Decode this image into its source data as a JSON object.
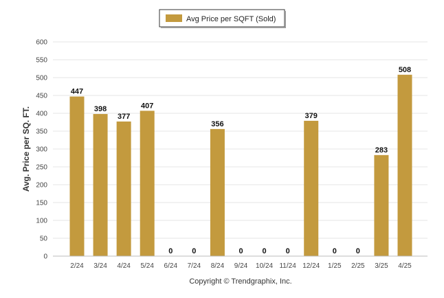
{
  "chart_data": {
    "type": "bar",
    "categories": [
      "2/24",
      "3/24",
      "4/24",
      "5/24",
      "6/24",
      "7/24",
      "8/24",
      "9/24",
      "10/24",
      "11/24",
      "12/24",
      "1/25",
      "2/25",
      "3/25",
      "4/25"
    ],
    "series": [
      {
        "name": "Avg Price per SQFT (Sold)",
        "values": [
          447,
          398,
          377,
          407,
          0,
          0,
          356,
          0,
          0,
          0,
          379,
          0,
          0,
          283,
          508
        ]
      }
    ],
    "data_labels": [
      "447",
      "398",
      "377",
      "407",
      "0",
      "0",
      "356",
      "0",
      "0",
      "0",
      "379",
      "0",
      "0",
      "283",
      "508"
    ],
    "ylabel": "Avg. Price per SQ. FT.",
    "xlabel": "",
    "ylim": [
      0,
      600
    ],
    "yticks": [
      0,
      50,
      100,
      150,
      200,
      250,
      300,
      350,
      400,
      450,
      500,
      550,
      600
    ],
    "grid": true,
    "legend_position": "top-center",
    "bar_color": "#C39A3E",
    "credit": "Copyright © Trendgraphix, Inc."
  }
}
